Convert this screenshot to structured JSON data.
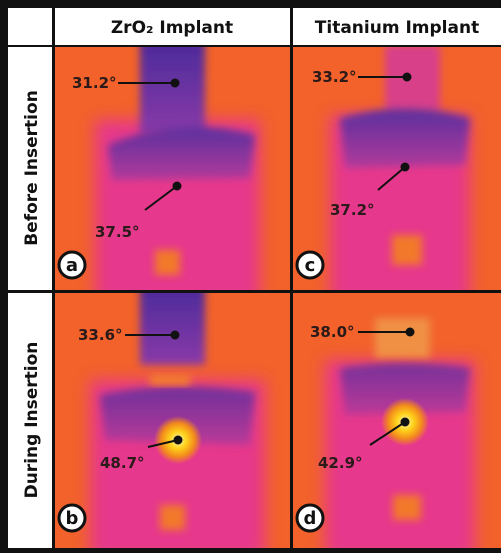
{
  "columns": [
    "ZrO₂ Implant",
    "Titanium Implant"
  ],
  "rows": [
    "Before Insertion",
    "During Insertion"
  ],
  "panels": [
    {
      "letter": "a",
      "labels": [
        "31.2°",
        "37.5°"
      ]
    },
    {
      "letter": "c",
      "labels": [
        "33.2°",
        "37.2°"
      ]
    },
    {
      "letter": "b",
      "labels": [
        "33.6°",
        "48.7°"
      ]
    },
    {
      "letter": "d",
      "labels": [
        "38.0°",
        "42.9°"
      ]
    }
  ]
}
